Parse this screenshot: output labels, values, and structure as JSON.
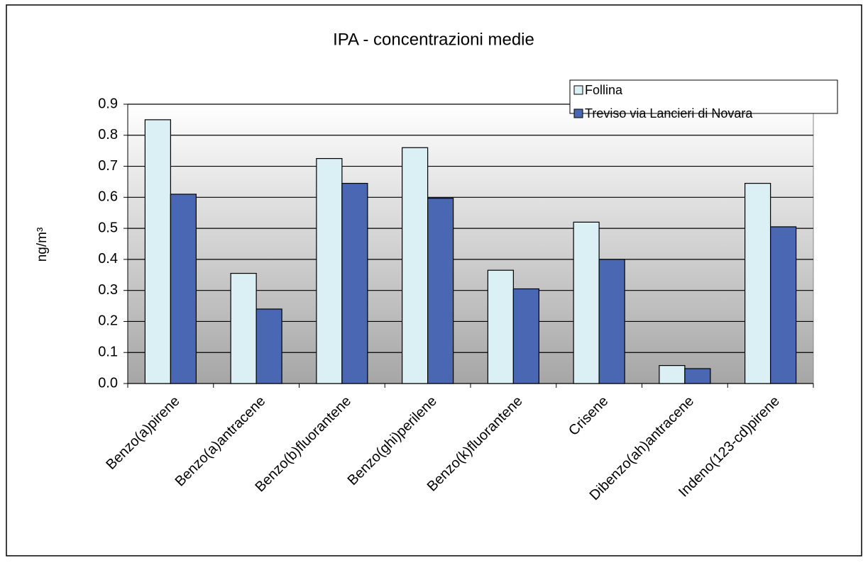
{
  "chart_data": {
    "type": "bar",
    "title": "IPA - concentrazioni medie",
    "y_label": "ng/m³",
    "categories": [
      "Benzo(a)pirene",
      "Benzo(a)antracene",
      "Benzo(b)fluorantene",
      "Benzo(ghi)perilene",
      "Benzo(k)fluorantene",
      "Crisene",
      "Dibenzo(ah)antracene",
      "Indeno(123-cd)pirene"
    ],
    "series": [
      {
        "name": "Follina",
        "color": "#daf0f5",
        "values": [
          0.85,
          0.355,
          0.725,
          0.76,
          0.365,
          0.52,
          0.058,
          0.645
        ]
      },
      {
        "name": "Treviso via Lancieri di Novara",
        "color": "#4a67b4",
        "values": [
          0.61,
          0.24,
          0.645,
          0.597,
          0.305,
          0.4,
          0.048,
          0.505
        ]
      }
    ],
    "ylim": [
      0,
      0.9
    ],
    "yticks": [
      {
        "value": 0,
        "label": "0.0"
      },
      0.1,
      0.2,
      0.3,
      0.4,
      0.5,
      0.6,
      0.7,
      0.8,
      0.9
    ],
    "grid": true,
    "legend": "top-right"
  }
}
